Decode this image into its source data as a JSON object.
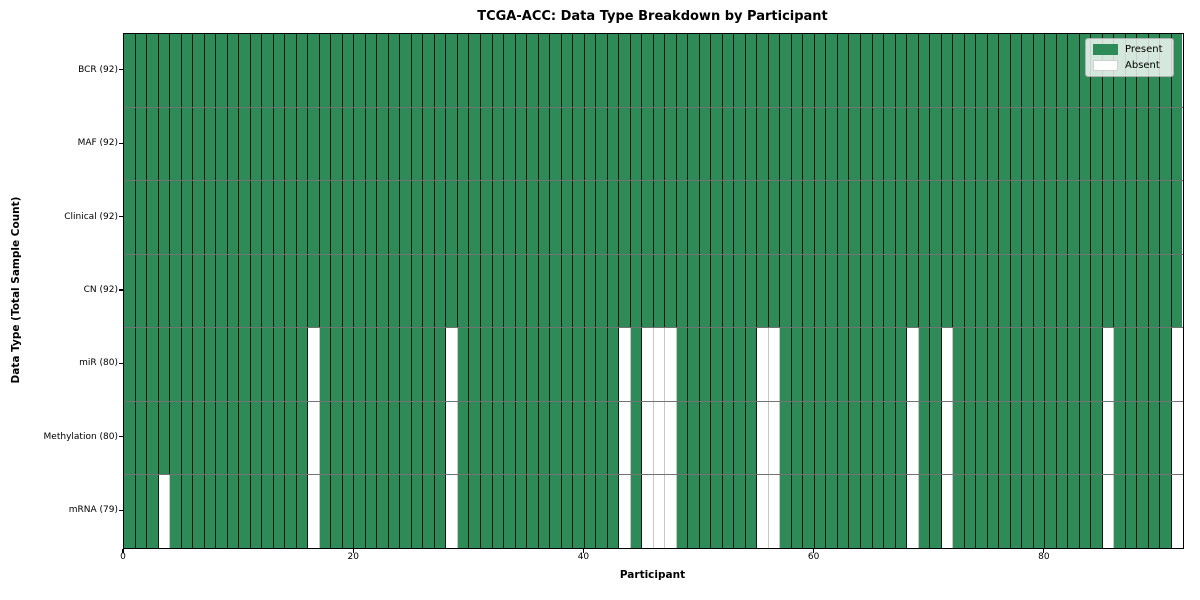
{
  "figure": {
    "title": "TCGA-ACC: Data Type Breakdown by Participant",
    "xlabel": "Participant",
    "ylabel": "Data Type (Total Sample Count)"
  },
  "legend": {
    "items": [
      {
        "label": "Present",
        "color": "#2e8b57"
      },
      {
        "label": "Absent",
        "color": "#ffffff"
      }
    ]
  },
  "chart_data": {
    "type": "heatmap",
    "title": "TCGA-ACC: Data Type Breakdown by Participant",
    "xlabel": "Participant",
    "ylabel": "Data Type (Total Sample Count)",
    "x_ticks": [
      0,
      20,
      40,
      60,
      80
    ],
    "x_range": [
      0,
      92
    ],
    "n_participants": 92,
    "grid": "cell-borders",
    "legend_position": "upper right",
    "colors": {
      "present": "#2e8b57",
      "absent": "#ffffff"
    },
    "rows": [
      {
        "label": "BCR (92)",
        "data_type": "BCR",
        "present_count": 92,
        "absent_participants": []
      },
      {
        "label": "MAF (92)",
        "data_type": "MAF",
        "present_count": 92,
        "absent_participants": []
      },
      {
        "label": "Clinical (92)",
        "data_type": "Clinical",
        "present_count": 92,
        "absent_participants": []
      },
      {
        "label": "CN (92)",
        "data_type": "CN",
        "present_count": 92,
        "absent_participants": []
      },
      {
        "label": "miR (80)",
        "data_type": "miR",
        "present_count": 80,
        "absent_participants": [
          16,
          28,
          43,
          45,
          46,
          47,
          55,
          56,
          68,
          71,
          85,
          91
        ]
      },
      {
        "label": "Methylation (80)",
        "data_type": "Methylation",
        "present_count": 80,
        "absent_participants": [
          16,
          28,
          43,
          45,
          46,
          47,
          55,
          56,
          68,
          71,
          85,
          91
        ]
      },
      {
        "label": "mRNA (79)",
        "data_type": "mRNA",
        "present_count": 79,
        "absent_participants": [
          3,
          16,
          28,
          43,
          45,
          46,
          47,
          55,
          56,
          68,
          71,
          85,
          91
        ]
      }
    ]
  }
}
